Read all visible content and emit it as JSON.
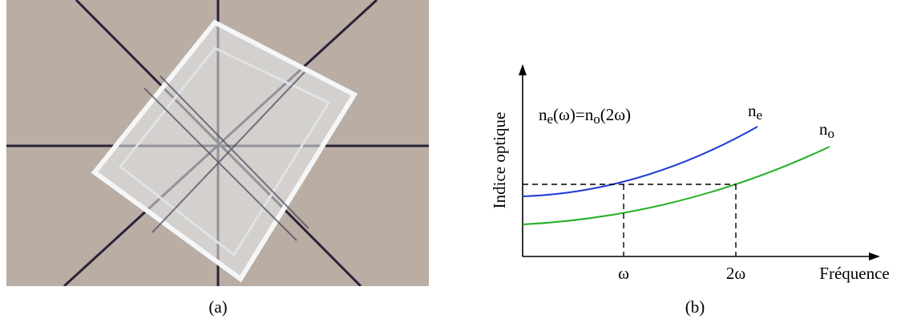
{
  "panel_a": {
    "caption": "(a)"
  },
  "panel_b": {
    "caption": "(b)",
    "y_axis_label": "Indice optique",
    "x_axis_label": "Fréquence",
    "x_marks": [
      "ω",
      "2ω"
    ],
    "curve_labels": [
      {
        "base": "n",
        "sub": "e"
      },
      {
        "base": "n",
        "sub": "o"
      }
    ],
    "equation": [
      {
        "text": "n"
      },
      {
        "text": "e",
        "sub": true
      },
      {
        "text": "(ω)=n"
      },
      {
        "text": "o",
        "sub": true
      },
      {
        "text": "(2ω)"
      }
    ]
  }
}
